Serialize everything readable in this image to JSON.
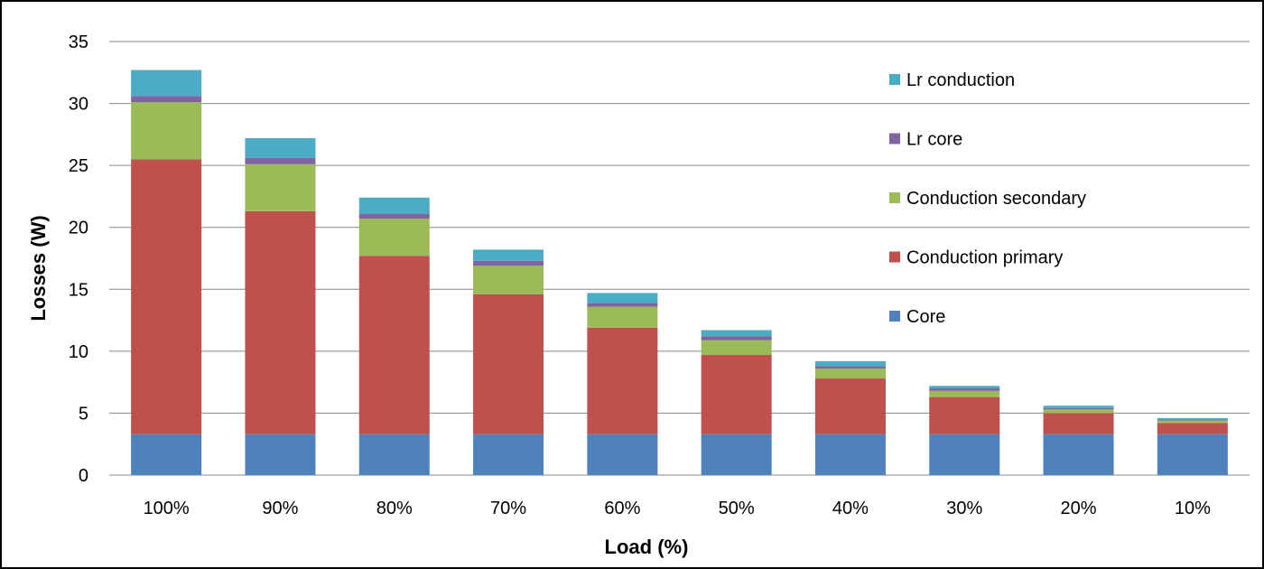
{
  "chart_data": {
    "type": "bar",
    "stacked": true,
    "xlabel": "Load (%)",
    "ylabel": "Losses (W)",
    "ylim": [
      0,
      35
    ],
    "yticks": [
      0,
      5,
      10,
      15,
      20,
      25,
      30,
      35
    ],
    "grid": "horizontal",
    "legend_position": "right",
    "categories": [
      "100%",
      "90%",
      "80%",
      "70%",
      "60%",
      "50%",
      "40%",
      "30%",
      "20%",
      "10%"
    ],
    "series": [
      {
        "name": "Core",
        "color": "#4F81BD",
        "values": [
          3.3,
          3.3,
          3.3,
          3.3,
          3.3,
          3.3,
          3.3,
          3.3,
          3.3,
          3.3
        ]
      },
      {
        "name": "Conduction primary",
        "color": "#C0504D",
        "values": [
          22.2,
          18.0,
          14.4,
          11.3,
          8.6,
          6.4,
          4.5,
          3.0,
          1.7,
          0.9
        ]
      },
      {
        "name": "Conduction secondary",
        "color": "#9BBB59",
        "values": [
          4.6,
          3.8,
          3.0,
          2.3,
          1.7,
          1.2,
          0.8,
          0.5,
          0.3,
          0.2
        ]
      },
      {
        "name": "Lr core",
        "color": "#8064A2",
        "values": [
          0.5,
          0.5,
          0.4,
          0.4,
          0.3,
          0.3,
          0.2,
          0.2,
          0.1,
          0.1
        ]
      },
      {
        "name": "Lr conduction",
        "color": "#4BACC6",
        "values": [
          2.1,
          1.6,
          1.3,
          0.9,
          0.8,
          0.5,
          0.4,
          0.2,
          0.2,
          0.1
        ]
      }
    ]
  }
}
